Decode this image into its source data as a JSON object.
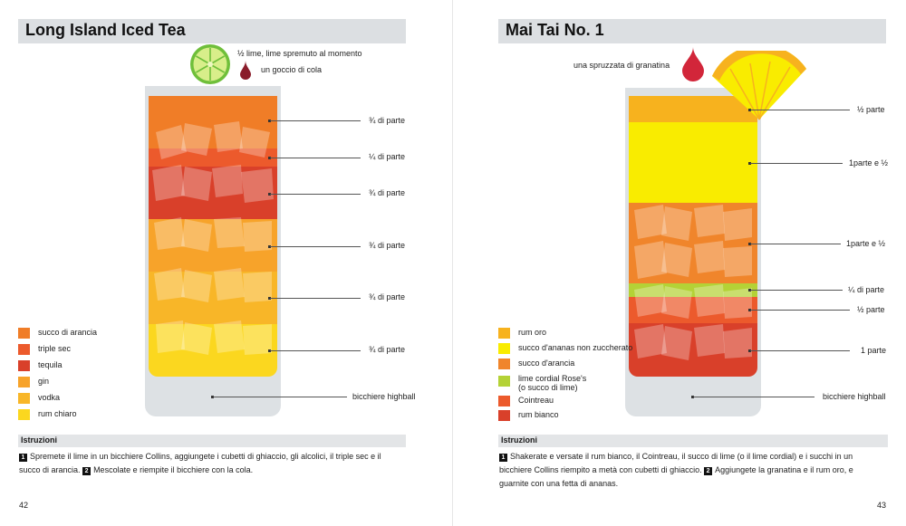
{
  "left": {
    "title": "Long Island Iced Tea",
    "garnish": [
      {
        "icon": "lime-slice-icon",
        "text": "½ lime, lime spremuto al momento"
      },
      {
        "icon": "cola-drop-icon",
        "text": "un goccio di cola"
      }
    ],
    "measures": [
      "¾ di parte",
      "¼ di parte",
      "¾  di parte",
      "¾ di parte",
      "¾ di parte",
      "¾ di parte"
    ],
    "glass_label": "bicchiere highball",
    "legend": [
      {
        "label": "succo di arancia",
        "color": "#f07d27"
      },
      {
        "label": "triple sec",
        "color": "#ec5a2c"
      },
      {
        "label": "tequila",
        "color": "#d9402a"
      },
      {
        "label": "gin",
        "color": "#f7a32a"
      },
      {
        "label": "vodka",
        "color": "#f8b628"
      },
      {
        "label": "rum chiaro",
        "color": "#fbd71f"
      }
    ],
    "instructions_heading": "Istruzioni",
    "steps": [
      {
        "n": "1",
        "text": "Spremete il lime in un bicchiere Collins, aggiungete i cubetti di ghiaccio, gli alcolici, il triple sec e il succo di arancia."
      },
      {
        "n": "2",
        "text": "Mescolate e riempite il bicchiere con la cola."
      }
    ],
    "page_number": "42"
  },
  "right": {
    "title": "Mai Tai No. 1",
    "garnish": [
      {
        "icon": "grenadine-drop-icon",
        "text": "una spruzzata di granatina"
      }
    ],
    "measures": [
      "½ parte",
      "1parte e ½",
      "1parte e ½",
      "¼ di parte",
      "½ parte",
      "1 parte"
    ],
    "glass_label": "bicchiere highball",
    "legend": [
      {
        "label": "rum oro",
        "color": "#f7b21e"
      },
      {
        "label": "succo d'ananas non zuccherato",
        "color": "#f9ec00"
      },
      {
        "label": "succo d'arancia",
        "color": "#f0852b"
      },
      {
        "label": "lime cordial Rose's",
        "label2": "(o succo di lime)",
        "color": "#b4d236"
      },
      {
        "label": "Cointreau",
        "color": "#ec5a2c"
      },
      {
        "label": "rum bianco",
        "color": "#d9402a"
      }
    ],
    "instructions_heading": "Istruzioni",
    "steps": [
      {
        "n": "1",
        "text": "Shakerate e versate il rum bianco, il Cointreau, il succo di lime (o il lime cordial) e i succhi in un bicchiere Collins riempito a metà con cubetti di ghiaccio."
      },
      {
        "n": "2",
        "text": "Aggiungete la granatina e il rum oro, e guarnite con una fetta di ananas."
      }
    ],
    "page_number": "43"
  }
}
